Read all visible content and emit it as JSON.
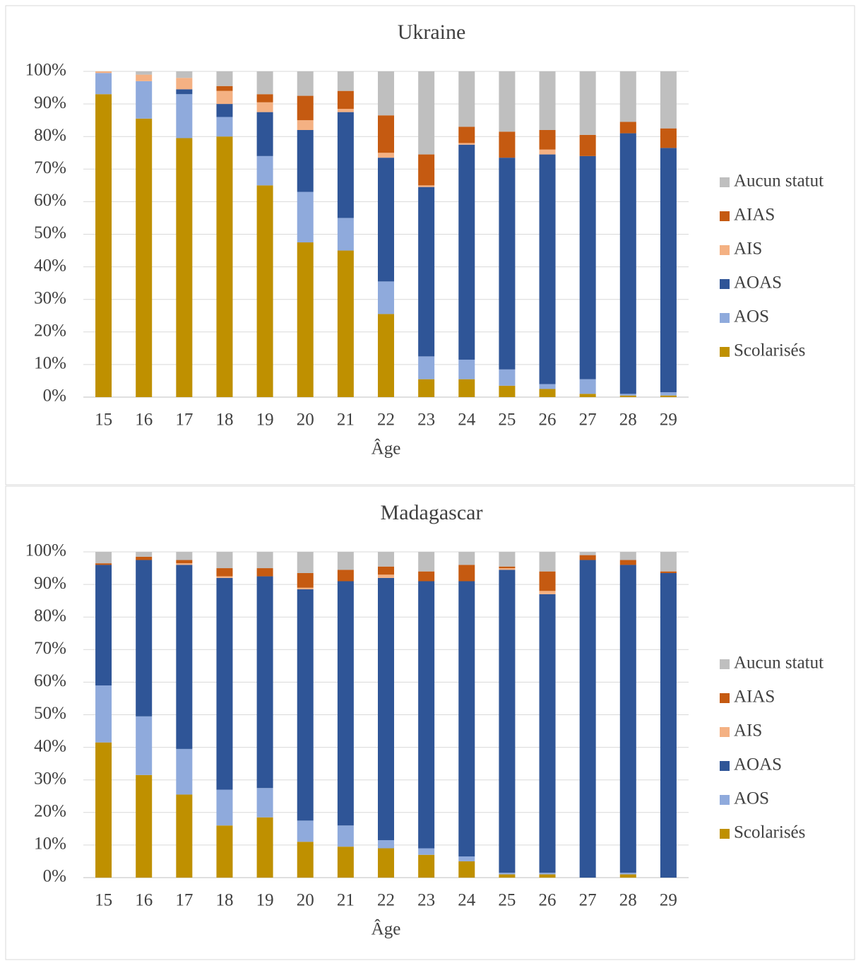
{
  "chart_data": [
    {
      "type": "bar",
      "stacked": true,
      "title": "Ukraine",
      "x_label": "Âge",
      "categories": [
        "15",
        "16",
        "17",
        "18",
        "19",
        "20",
        "21",
        "22",
        "23",
        "24",
        "25",
        "26",
        "27",
        "28",
        "29"
      ],
      "ylim": [
        0,
        100
      ],
      "yticks": [
        {
          "value": 0,
          "label": "0%"
        },
        {
          "value": 10,
          "label": "10%"
        },
        {
          "value": 20,
          "label": "20%"
        },
        {
          "value": 30,
          "label": "30%"
        },
        {
          "value": 40,
          "label": "40%"
        },
        {
          "value": 50,
          "label": "50%"
        },
        {
          "value": 60,
          "label": "60%"
        },
        {
          "value": 70,
          "label": "70%"
        },
        {
          "value": 80,
          "label": "80%"
        },
        {
          "value": 90,
          "label": "90%"
        },
        {
          "value": 100,
          "label": "100%"
        }
      ],
      "grid": true,
      "legend": "right",
      "series": [
        {
          "name": "Scolarisés",
          "color": "#bf9000",
          "values": [
            93,
            85.5,
            79.5,
            80,
            65,
            47.5,
            45,
            25.5,
            5.5,
            5.5,
            3.5,
            2.5,
            1,
            0.5,
            0.5
          ]
        },
        {
          "name": "AOS",
          "color": "#8faadc",
          "values": [
            6.5,
            11.5,
            13.5,
            6,
            9,
            15.5,
            10,
            10,
            7,
            6,
            5,
            1.5,
            4.5,
            0.5,
            1
          ]
        },
        {
          "name": "AOAS",
          "color": "#2f5597",
          "values": [
            0,
            0,
            1.5,
            4,
            13.5,
            19,
            32.5,
            38,
            52,
            66,
            65,
            70.5,
            68.5,
            80,
            75
          ]
        },
        {
          "name": "AIS",
          "color": "#f4b183",
          "values": [
            0.5,
            2,
            3.5,
            4,
            3,
            3,
            1,
            1.5,
            0.5,
            0.5,
            0,
            1.5,
            0,
            0,
            0
          ]
        },
        {
          "name": "AIAS",
          "color": "#c55a11",
          "values": [
            0,
            0,
            0,
            1.5,
            2.5,
            7.5,
            5.5,
            11.5,
            9.5,
            5,
            8,
            6,
            6.5,
            3.5,
            6
          ]
        },
        {
          "name": "Aucun statut",
          "color": "#bfbfbf",
          "values": [
            0,
            1,
            2,
            4.5,
            7,
            7.5,
            6,
            13.5,
            25.5,
            17,
            18.5,
            18,
            19.5,
            15.5,
            17.5
          ]
        }
      ]
    },
    {
      "type": "bar",
      "stacked": true,
      "title": "Madagascar",
      "x_label": "Âge",
      "categories": [
        "15",
        "16",
        "17",
        "18",
        "19",
        "20",
        "21",
        "22",
        "23",
        "24",
        "25",
        "26",
        "27",
        "28",
        "29"
      ],
      "ylim": [
        0,
        100
      ],
      "yticks": [
        {
          "value": 0,
          "label": "0%"
        },
        {
          "value": 10,
          "label": "10%"
        },
        {
          "value": 20,
          "label": "20%"
        },
        {
          "value": 30,
          "label": "30%"
        },
        {
          "value": 40,
          "label": "40%"
        },
        {
          "value": 50,
          "label": "50%"
        },
        {
          "value": 60,
          "label": "60%"
        },
        {
          "value": 70,
          "label": "70%"
        },
        {
          "value": 80,
          "label": "80%"
        },
        {
          "value": 90,
          "label": "90%"
        },
        {
          "value": 100,
          "label": "100%"
        }
      ],
      "grid": true,
      "legend": "right",
      "series": [
        {
          "name": "Scolarisés",
          "color": "#bf9000",
          "values": [
            41.5,
            31.5,
            25.5,
            16,
            18.5,
            11,
            9.5,
            9,
            7,
            5,
            1,
            1,
            0,
            1,
            0
          ]
        },
        {
          "name": "AOS",
          "color": "#8faadc",
          "values": [
            17.5,
            18,
            14,
            11,
            9,
            6.5,
            6.5,
            2.5,
            2,
            1.5,
            0.5,
            0.5,
            0,
            0.5,
            0
          ]
        },
        {
          "name": "AOAS",
          "color": "#2f5597",
          "values": [
            37,
            48,
            56.5,
            65,
            65,
            71,
            75,
            80.5,
            82,
            84.5,
            93,
            85.5,
            97.5,
            94.5,
            93.5
          ]
        },
        {
          "name": "AIS",
          "color": "#f4b183",
          "values": [
            0,
            0,
            0.5,
            0.5,
            0,
            0.5,
            0,
            1,
            0,
            0,
            0.5,
            1,
            0,
            0,
            0
          ]
        },
        {
          "name": "AIAS",
          "color": "#c55a11",
          "values": [
            0.5,
            1,
            1,
            2.5,
            2.5,
            4.5,
            3.5,
            2.5,
            3,
            5,
            0.5,
            6,
            1.5,
            1.5,
            0.5
          ]
        },
        {
          "name": "Aucun statut",
          "color": "#bfbfbf",
          "values": [
            3.5,
            1.5,
            2.5,
            5,
            5,
            6.5,
            5.5,
            4.5,
            6,
            4,
            4.5,
            6,
            1,
            2.5,
            6
          ]
        }
      ]
    }
  ]
}
